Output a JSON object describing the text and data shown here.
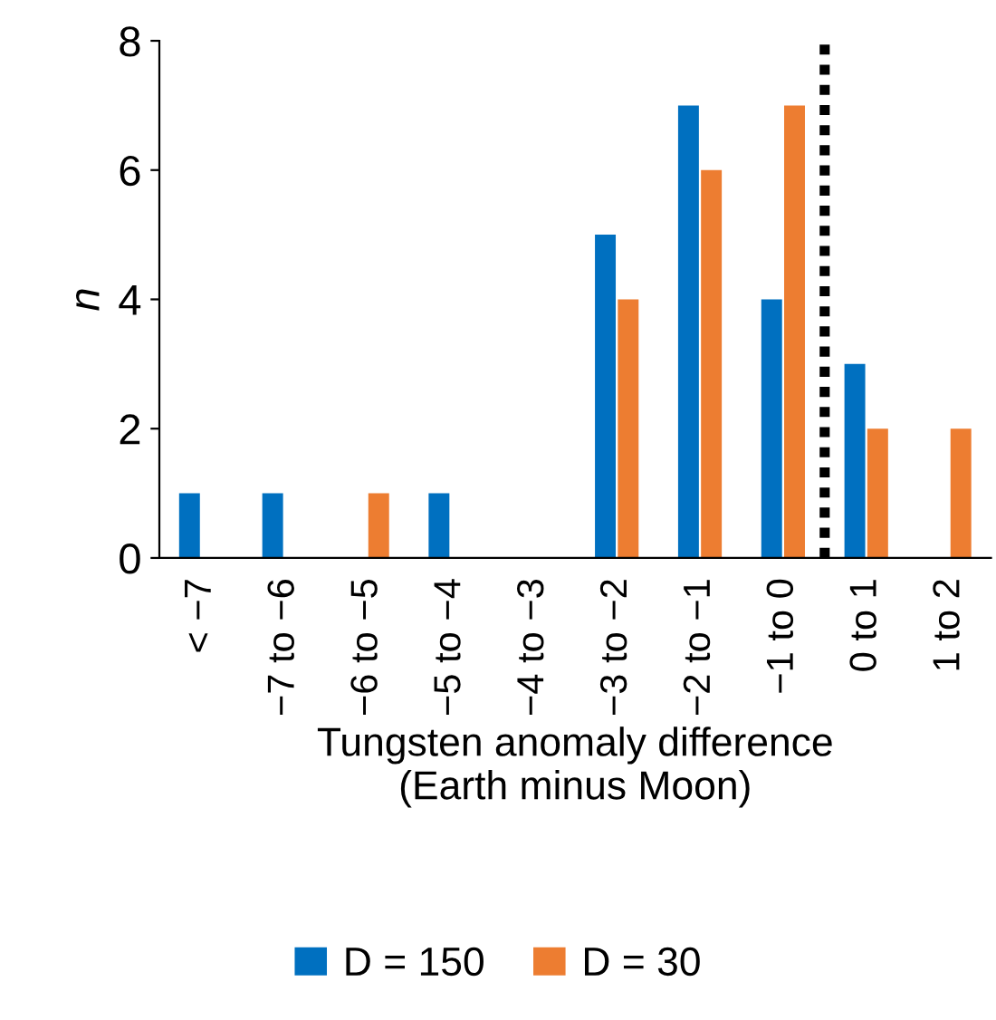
{
  "chart_data": {
    "type": "bar",
    "xlabel": "Tungsten anomaly difference\n(Earth minus Moon)",
    "ylabel": "n",
    "categories": [
      "< −7",
      "−7 to −6",
      "−6 to −5",
      "−5 to −4",
      "−4 to −3",
      "−3 to −2",
      "−2 to −1",
      "−1 to 0",
      "0 to 1",
      "1 to 2"
    ],
    "series": [
      {
        "name": "D = 150",
        "color": "#0070c0",
        "values": [
          1,
          1,
          0,
          1,
          0,
          5,
          7,
          4,
          3,
          0
        ]
      },
      {
        "name": "D = 30",
        "color": "#ed7d31",
        "values": [
          0,
          0,
          1,
          0,
          0,
          4,
          6,
          7,
          2,
          2
        ]
      }
    ],
    "ylim": [
      0,
      8
    ],
    "yticks": [
      0,
      2,
      4,
      6,
      8
    ],
    "grid": false,
    "legend": "bottom"
  }
}
